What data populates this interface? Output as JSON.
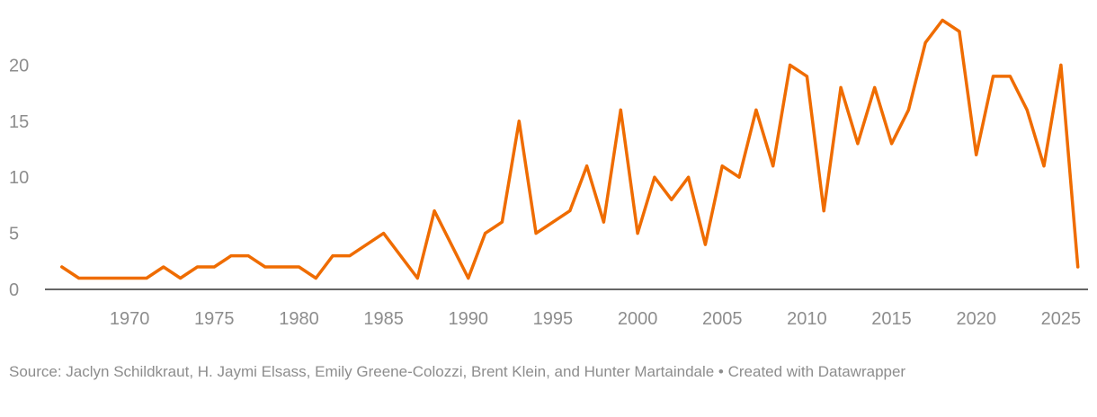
{
  "chart_data": {
    "type": "line",
    "title": "",
    "xlabel": "",
    "ylabel": "",
    "xlim": [
      1965,
      2026.6
    ],
    "ylim": [
      0,
      25
    ],
    "y_ticks": [
      0,
      5,
      10,
      15,
      20
    ],
    "x_ticks": [
      1970,
      1975,
      1980,
      1985,
      1990,
      1995,
      2000,
      2005,
      2010,
      2015,
      2020,
      2025
    ],
    "grid": false,
    "legend": "none",
    "series": [
      {
        "color": "#ef6c00",
        "x": [
          1966,
          1967,
          1968,
          1969,
          1970,
          1971,
          1972,
          1973,
          1974,
          1975,
          1976,
          1977,
          1978,
          1979,
          1980,
          1981,
          1982,
          1983,
          1985,
          1987,
          1988,
          1990,
          1991,
          1992,
          1993,
          1994,
          1996,
          1997,
          1998,
          1999,
          2000,
          2001,
          2002,
          2003,
          2004,
          2005,
          2006,
          2007,
          2008,
          2009,
          2010,
          2011,
          2012,
          2013,
          2014,
          2015,
          2016,
          2017,
          2018,
          2019,
          2020,
          2021,
          2022,
          2023,
          2024,
          2025,
          2026
        ],
        "values": [
          2,
          1,
          1,
          1,
          1,
          1,
          2,
          1,
          2,
          2,
          3,
          3,
          2,
          2,
          2,
          1,
          3,
          3,
          5,
          1,
          7,
          1,
          5,
          6,
          15,
          5,
          7,
          11,
          6,
          16,
          5,
          10,
          8,
          10,
          4,
          11,
          10,
          16,
          11,
          20,
          19,
          7,
          18,
          13,
          18,
          13,
          16,
          22,
          24,
          23,
          12,
          19,
          19,
          16,
          11,
          20,
          2
        ]
      }
    ]
  },
  "footer": {
    "source": "Source: Jaclyn Schildkraut, H. Jaymi Elsass, Emily Greene-Colozzi, Brent Klein, and Hunter Martaindale • Created with Datawrapper"
  }
}
